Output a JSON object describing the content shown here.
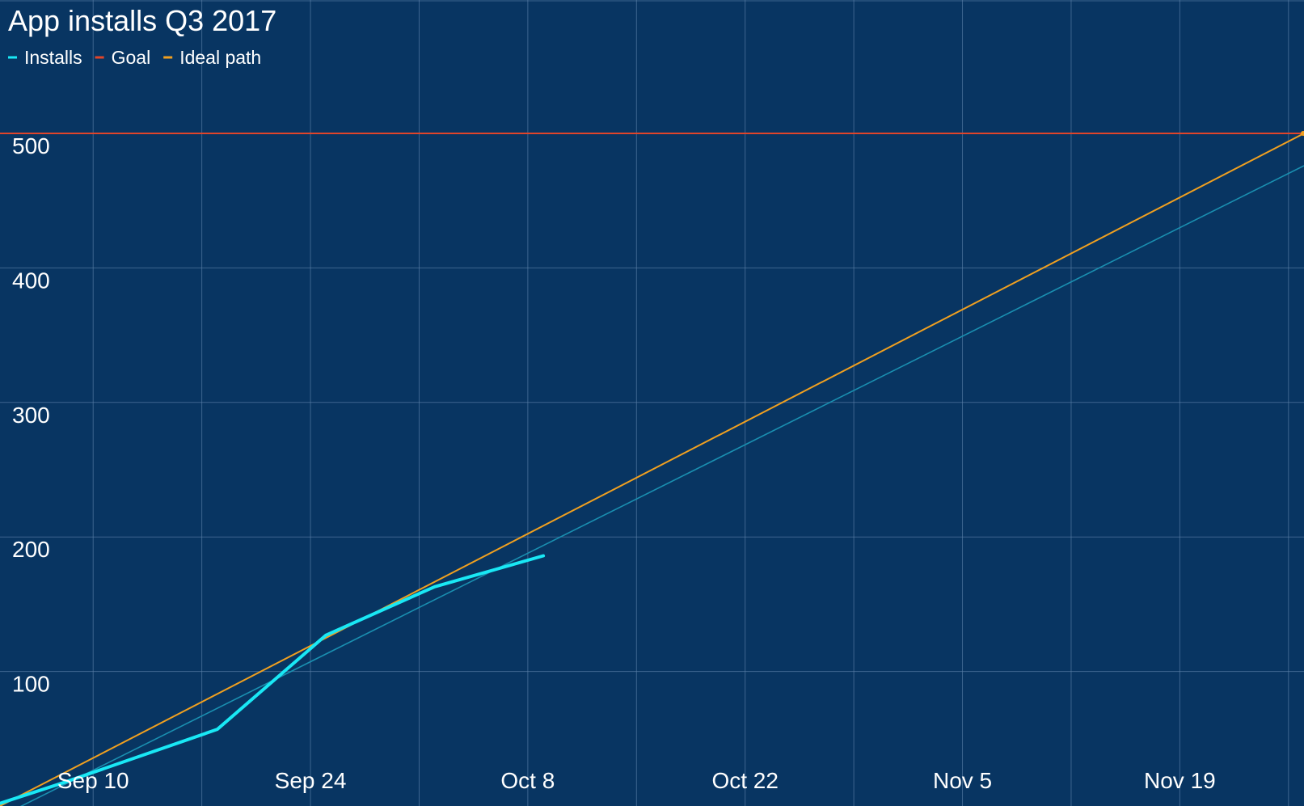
{
  "chart_data": {
    "type": "line",
    "title": "App installs Q3 2017",
    "xlabel": "",
    "ylabel": "",
    "x_ticks": [
      "Sep 10",
      "Sep 24",
      "Oct 8",
      "Oct 22",
      "Nov 5",
      "Nov 19"
    ],
    "x_tick_dates": [
      "2017-09-10",
      "2017-09-24",
      "2017-10-08",
      "2017-10-22",
      "2017-11-05",
      "2017-11-19"
    ],
    "xlim": [
      "2017-09-04",
      "2017-11-27"
    ],
    "ylim": [
      0,
      500
    ],
    "y_ticks": [
      100,
      200,
      300,
      400,
      500
    ],
    "grid": true,
    "legend_position": "top-left",
    "series": [
      {
        "name": "Installs",
        "color": "#19e8f5",
        "points": [
          {
            "x": "2017-09-04",
            "y": 2
          },
          {
            "x": "2017-09-08",
            "y": 17
          },
          {
            "x": "2017-09-18",
            "y": 57
          },
          {
            "x": "2017-09-25",
            "y": 127
          },
          {
            "x": "2017-10-02",
            "y": 163
          },
          {
            "x": "2017-10-09",
            "y": 186
          }
        ]
      },
      {
        "name": "Goal",
        "color": "#e0452a",
        "points": [
          {
            "x": "2017-09-04",
            "y": 500
          },
          {
            "x": "2017-11-27",
            "y": 500
          }
        ]
      },
      {
        "name": "Ideal path",
        "color": "#f0a020",
        "points": [
          {
            "x": "2017-09-04",
            "y": 0
          },
          {
            "x": "2017-11-27",
            "y": 500
          }
        ]
      }
    ],
    "trendline": {
      "series": "Installs",
      "color": "#1a8fb0",
      "points": [
        {
          "x": "2017-09-04",
          "y": -8
        },
        {
          "x": "2017-11-27",
          "y": 476
        }
      ]
    }
  }
}
